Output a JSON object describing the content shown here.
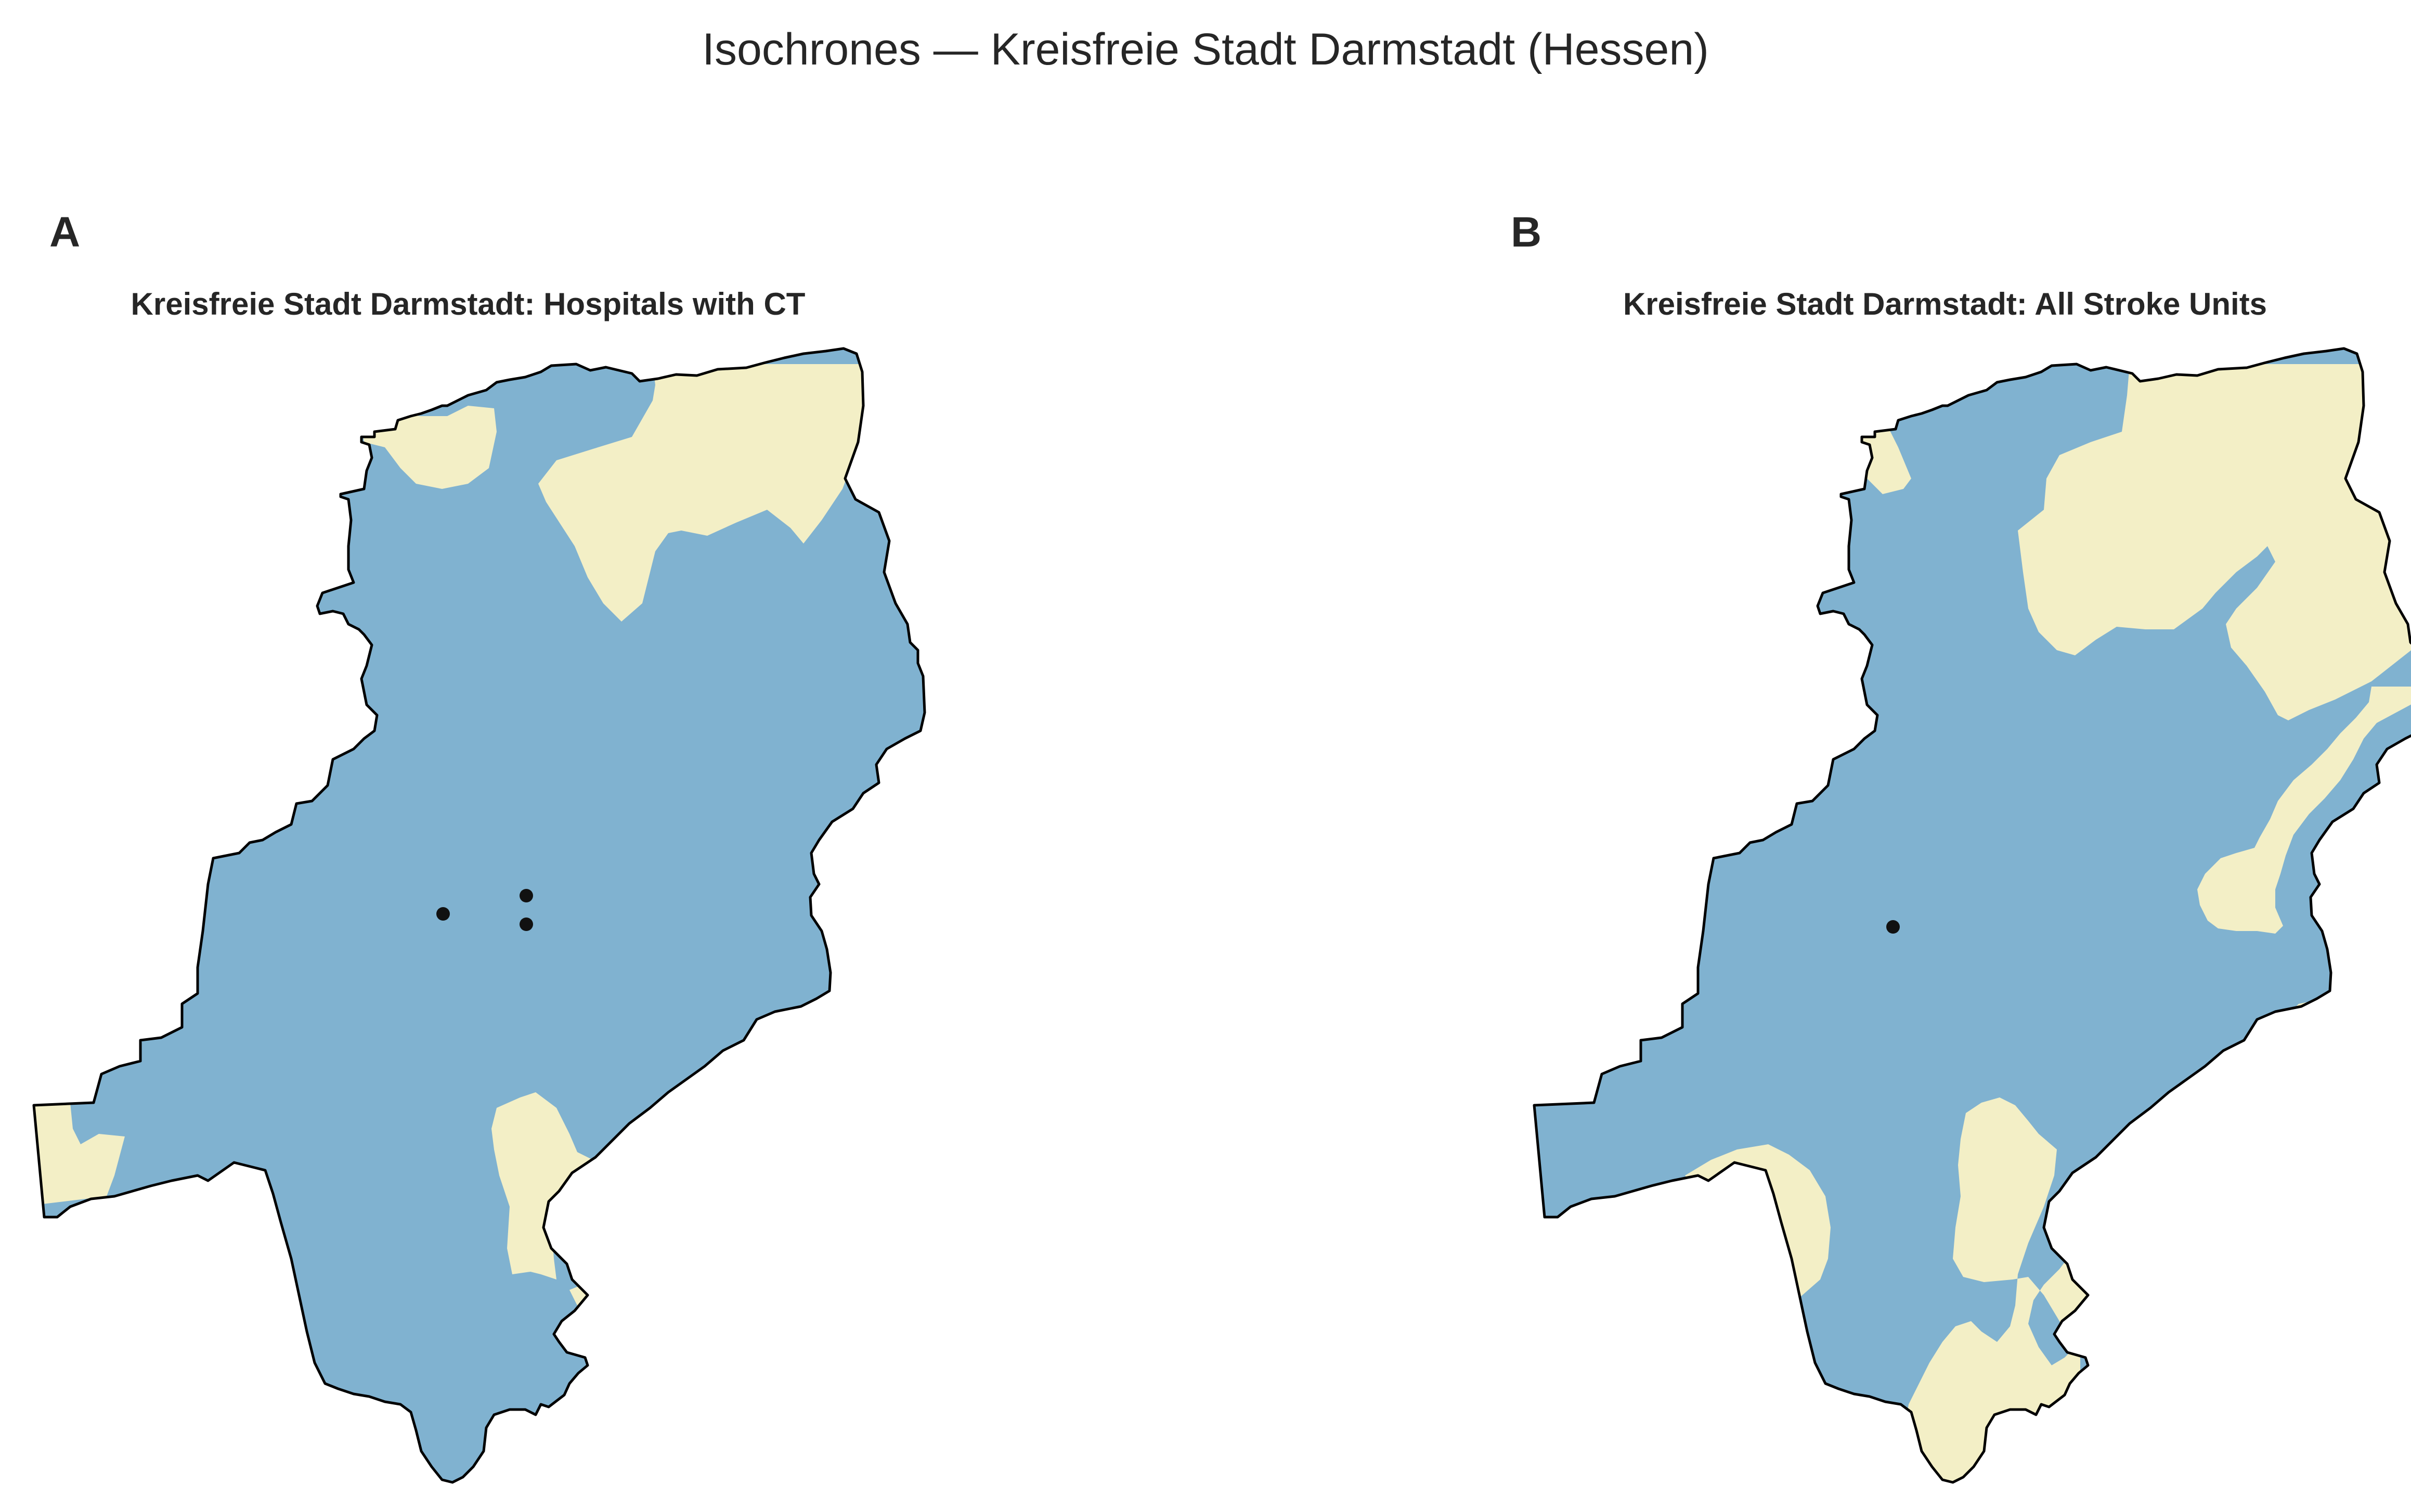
{
  "figure": {
    "title": "Isochrones — Kreisfreie Stadt Darmstadt (Hessen)"
  },
  "colors": {
    "within": "#80b2d0",
    "outside": "#f3efc6",
    "boundary": "#000000",
    "facility": "#111111"
  },
  "panels": [
    {
      "letter": "A",
      "title": "Kreisfreie Stadt Darmstadt: Hospitals with CT",
      "facilities": [
        {
          "type": "hospital-with-ct"
        },
        {
          "type": "hospital-with-ct"
        },
        {
          "type": "hospital-with-ct"
        }
      ]
    },
    {
      "letter": "B",
      "title": "Kreisfreie Stadt Darmstadt: All Stroke Units",
      "facilities": [
        {
          "type": "stroke-unit"
        }
      ]
    }
  ]
}
